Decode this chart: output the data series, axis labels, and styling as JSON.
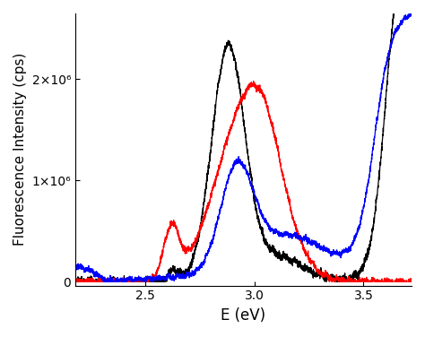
{
  "title": "",
  "xlabel": "E (eV)",
  "ylabel": "Fluorescence Intensity (cps)",
  "xlim": [
    2.18,
    3.72
  ],
  "ylim": [
    -40000.0,
    2650000.0
  ],
  "yticks": [
    0,
    1000000,
    2000000
  ],
  "ytick_labels": [
    "0",
    "1×10⁶",
    "2×10⁶"
  ],
  "colors": [
    "black",
    "red",
    "blue"
  ],
  "figsize": [
    4.74,
    3.76
  ],
  "dpi": 100,
  "xticks": [
    2.5,
    3.0,
    3.5
  ],
  "xtick_labels": [
    "2.5",
    "3.0",
    "3.5"
  ]
}
